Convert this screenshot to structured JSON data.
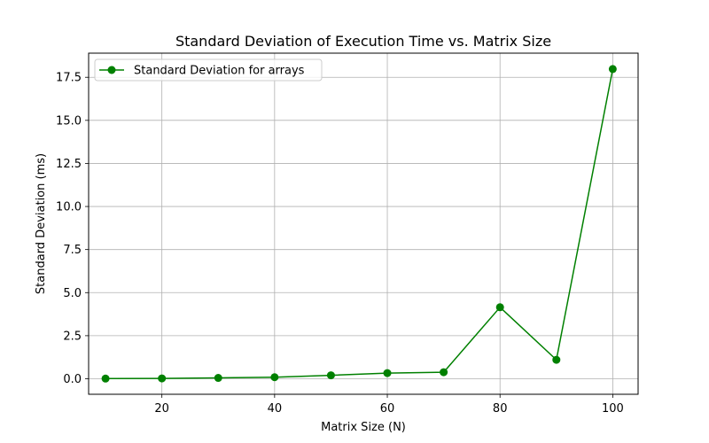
{
  "chart_data": {
    "type": "line",
    "title": "Standard Deviation of Execution Time vs. Matrix Size",
    "xlabel": "Matrix Size (N)",
    "ylabel": "Standard Deviation (ms)",
    "xlim": [
      7,
      104.5
    ],
    "ylim": [
      -0.9,
      18.9
    ],
    "xticks": [
      20,
      40,
      60,
      80,
      100
    ],
    "yticks": [
      0.0,
      2.5,
      5.0,
      7.5,
      10.0,
      12.5,
      15.0,
      17.5
    ],
    "xtick_labels": [
      "20",
      "40",
      "60",
      "80",
      "100"
    ],
    "ytick_labels": [
      "0.0",
      "2.5",
      "5.0",
      "7.5",
      "10.0",
      "12.5",
      "15.0",
      "17.5"
    ],
    "grid": true,
    "legend_position": "top-left",
    "series": [
      {
        "name": "Standard Deviation for arrays",
        "color": "#008000",
        "marker": "circle",
        "x": [
          10,
          20,
          30,
          40,
          50,
          60,
          70,
          80,
          90,
          100
        ],
        "values": [
          0.01,
          0.02,
          0.05,
          0.09,
          0.2,
          0.33,
          0.38,
          4.15,
          1.1,
          17.98
        ]
      }
    ]
  }
}
